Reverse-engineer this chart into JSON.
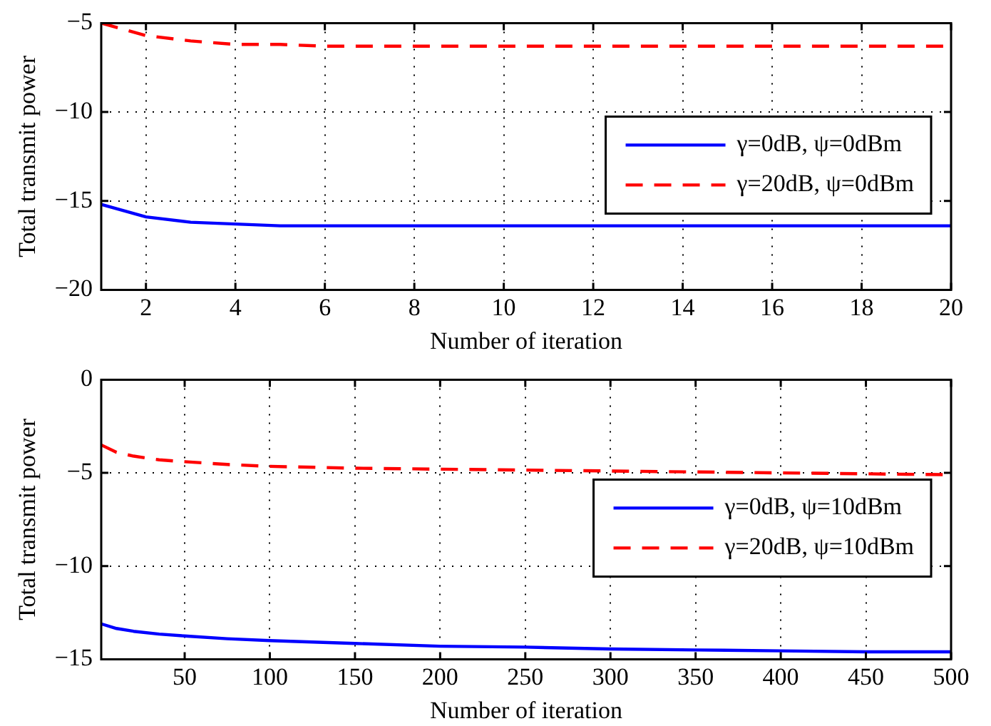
{
  "chart_data": [
    {
      "type": "line",
      "xlabel": "Number of iteration",
      "ylabel": "Total transmit power",
      "x": [
        1,
        2,
        3,
        4,
        5,
        6,
        8,
        10,
        12,
        14,
        16,
        18,
        20
      ],
      "series": [
        {
          "name": "γ=0dB, ψ=0dBm",
          "color": "#0000ff",
          "line_style": "solid",
          "values": [
            -15.2,
            -15.9,
            -16.2,
            -16.3,
            -16.4,
            -16.4,
            -16.4,
            -16.4,
            -16.4,
            -16.4,
            -16.4,
            -16.4,
            -16.4
          ]
        },
        {
          "name": "γ=20dB, ψ=0dBm",
          "color": "#ff0000",
          "line_style": "dashed",
          "values": [
            -5.0,
            -5.7,
            -6.0,
            -6.2,
            -6.2,
            -6.3,
            -6.3,
            -6.3,
            -6.3,
            -6.3,
            -6.3,
            -6.3,
            -6.3
          ]
        }
      ],
      "xlim": [
        1,
        20
      ],
      "xticks": [
        2,
        4,
        6,
        8,
        10,
        12,
        14,
        16,
        18,
        20
      ],
      "ylim": [
        -20,
        -5
      ],
      "yticks": [
        -20,
        -15,
        -10,
        -5
      ],
      "grid": true,
      "legend": "right",
      "marker": "none"
    },
    {
      "type": "line",
      "xlabel": "Number of iteration",
      "ylabel": "Total transmit power",
      "x": [
        1,
        10,
        20,
        35,
        50,
        75,
        100,
        150,
        200,
        250,
        300,
        350,
        400,
        450,
        500
      ],
      "series": [
        {
          "name": "γ=0dB, ψ=10dBm",
          "color": "#0000ff",
          "line_style": "solid",
          "values": [
            -13.1,
            -13.35,
            -13.5,
            -13.65,
            -13.75,
            -13.9,
            -14.0,
            -14.15,
            -14.3,
            -14.35,
            -14.45,
            -14.5,
            -14.55,
            -14.6,
            -14.6
          ]
        },
        {
          "name": "γ=20dB, ψ=10dBm",
          "color": "#ff0000",
          "line_style": "dashed",
          "values": [
            -3.5,
            -3.9,
            -4.1,
            -4.3,
            -4.4,
            -4.55,
            -4.65,
            -4.75,
            -4.8,
            -4.85,
            -4.9,
            -4.95,
            -5.0,
            -5.05,
            -5.1
          ]
        }
      ],
      "xlim": [
        1,
        500
      ],
      "xticks": [
        50,
        100,
        150,
        200,
        250,
        300,
        350,
        400,
        450,
        500
      ],
      "ylim": [
        -15,
        0
      ],
      "yticks": [
        -15,
        -10,
        -5,
        0
      ],
      "grid": true,
      "legend": "right",
      "marker": "none"
    }
  ]
}
